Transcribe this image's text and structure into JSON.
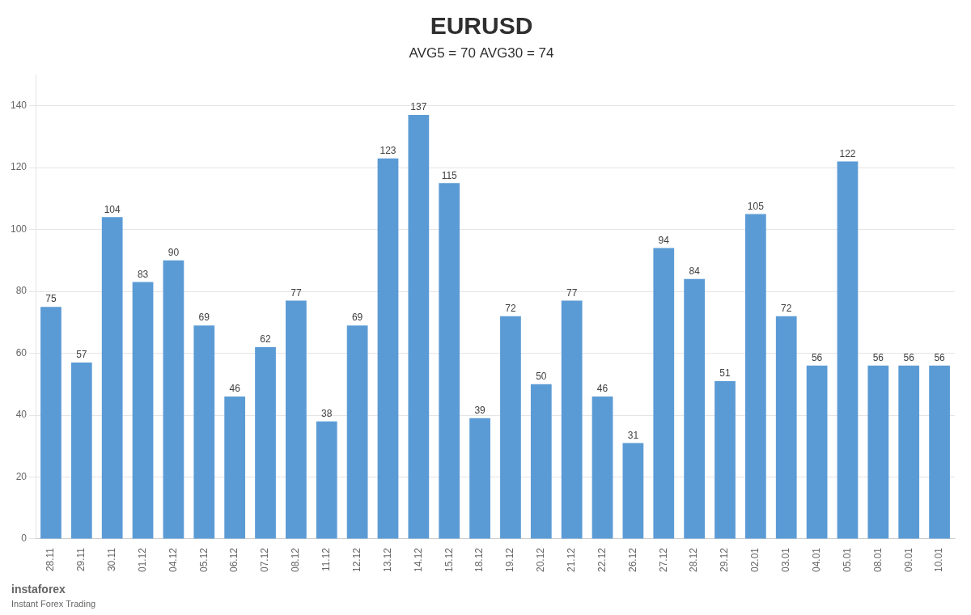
{
  "chart_data": {
    "type": "bar",
    "title": "EURUSD",
    "subtitle": "AVG5 = 70 AVG30 = 74",
    "categories": [
      "28.11",
      "29.11",
      "30.11",
      "01.12",
      "04.12",
      "05.12",
      "06.12",
      "07.12",
      "08.12",
      "11.12",
      "12.12",
      "13.12",
      "14.12",
      "15.12",
      "18.12",
      "19.12",
      "20.12",
      "21.12",
      "22.12",
      "26.12",
      "27.12",
      "28.12",
      "29.12",
      "02.01",
      "03.01",
      "04.01",
      "05.01",
      "08.01",
      "09.01",
      "10.01"
    ],
    "values": [
      75,
      57,
      104,
      83,
      90,
      69,
      46,
      62,
      77,
      38,
      69,
      123,
      137,
      115,
      39,
      72,
      50,
      77,
      46,
      31,
      94,
      84,
      51,
      105,
      72,
      56,
      122,
      56,
      56,
      56
    ],
    "color": "#5B9BD5",
    "ylim": [
      0,
      150
    ],
    "yticks": [
      0,
      20,
      40,
      60,
      80,
      100,
      120,
      140
    ],
    "grid": true,
    "data_labels": true,
    "annotations": [
      "instaforex",
      "Instant Forex Trading"
    ]
  }
}
